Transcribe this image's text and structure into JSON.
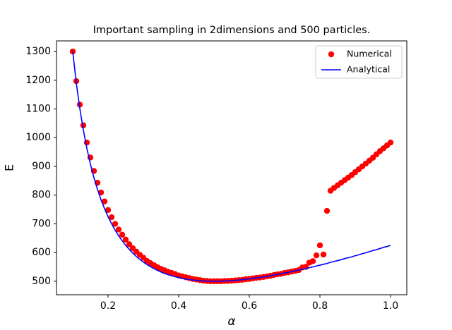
{
  "chart_data": {
    "type": "line",
    "title": "Important sampling in 2dimensions and 500 particles.",
    "xlabel": "α",
    "ylabel": "E",
    "x": [
      0.1,
      0.11,
      0.12,
      0.13,
      0.14,
      0.15,
      0.16,
      0.17,
      0.18,
      0.19,
      0.2,
      0.21,
      0.22,
      0.23,
      0.24,
      0.25,
      0.26,
      0.27,
      0.28,
      0.29,
      0.3,
      0.31,
      0.32,
      0.33,
      0.34,
      0.35,
      0.36,
      0.37,
      0.38,
      0.39,
      0.4,
      0.41,
      0.42,
      0.43,
      0.44,
      0.45,
      0.46,
      0.47,
      0.48,
      0.49,
      0.5,
      0.51,
      0.52,
      0.53,
      0.54,
      0.55,
      0.56,
      0.57,
      0.58,
      0.59,
      0.6,
      0.61,
      0.62,
      0.63,
      0.64,
      0.65,
      0.66,
      0.67,
      0.68,
      0.69,
      0.7,
      0.71,
      0.72,
      0.73,
      0.74,
      0.75,
      0.76,
      0.77,
      0.78,
      0.79,
      0.8,
      0.81,
      0.82,
      0.83,
      0.84,
      0.85,
      0.86,
      0.87,
      0.88,
      0.89,
      0.9,
      0.91,
      0.92,
      0.93,
      0.94,
      0.95,
      0.96,
      0.97,
      0.98,
      0.99,
      1.0
    ],
    "series": [
      {
        "name": "Numerical",
        "style": "scatter",
        "color": "#ff0000",
        "values": [
          1300,
          1197,
          1115,
          1043,
          983,
          931,
          884,
          843,
          809,
          778,
          748,
          723,
          700,
          680,
          662,
          645,
          629,
          615,
          603,
          592,
          582,
          571,
          563,
          556,
          549,
          543,
          538,
          533,
          529,
          525,
          520,
          517,
          514,
          511,
          508,
          506,
          504,
          502,
          501,
          500,
          500,
          500,
          500,
          501,
          501,
          502,
          503,
          504,
          505,
          507,
          508,
          510,
          512,
          513,
          515,
          517,
          519,
          522,
          524,
          526,
          529,
          531,
          534,
          536,
          539,
          548,
          550,
          565,
          570,
          590,
          625,
          593,
          745,
          815,
          825,
          834,
          843,
          852,
          861,
          870,
          880,
          890,
          900,
          910,
          920,
          930,
          942,
          953,
          963,
          973,
          983
        ]
      },
      {
        "name": "Analytical",
        "style": "line",
        "color": "#0000ff",
        "values": [
          1300,
          1191,
          1102,
          1027,
          963,
          908,
          861,
          820,
          784,
          753,
          725,
          700,
          678,
          658,
          641,
          625,
          611,
          598,
          586,
          576,
          567,
          558,
          551,
          544,
          538,
          532,
          527,
          523,
          519,
          516,
          512.5,
          510,
          508,
          506,
          504,
          503,
          502,
          501,
          500.4,
          500.1,
          500,
          500.1,
          500.4,
          501,
          501.5,
          502,
          503,
          504,
          505.5,
          507,
          508,
          510,
          512,
          513,
          515,
          517,
          519,
          522,
          524,
          526,
          529,
          531,
          534,
          536,
          539,
          542,
          544,
          547,
          550,
          553,
          556,
          559,
          562,
          566,
          569,
          572,
          575,
          579,
          582,
          585,
          589,
          592,
          596,
          599,
          603,
          607,
          610,
          614,
          618,
          621,
          625
        ]
      }
    ],
    "xlim": [
      0.054,
      1.046
    ],
    "xticks": [
      0.2,
      0.4,
      0.6,
      0.8,
      {
        "value": 1.0,
        "label": "1.0"
      }
    ],
    "ylim": [
      453,
      1337
    ],
    "yticks": [
      500,
      600,
      700,
      800,
      900,
      1000,
      1100,
      1200,
      1300
    ],
    "legend": "upper right",
    "grid": false
  }
}
